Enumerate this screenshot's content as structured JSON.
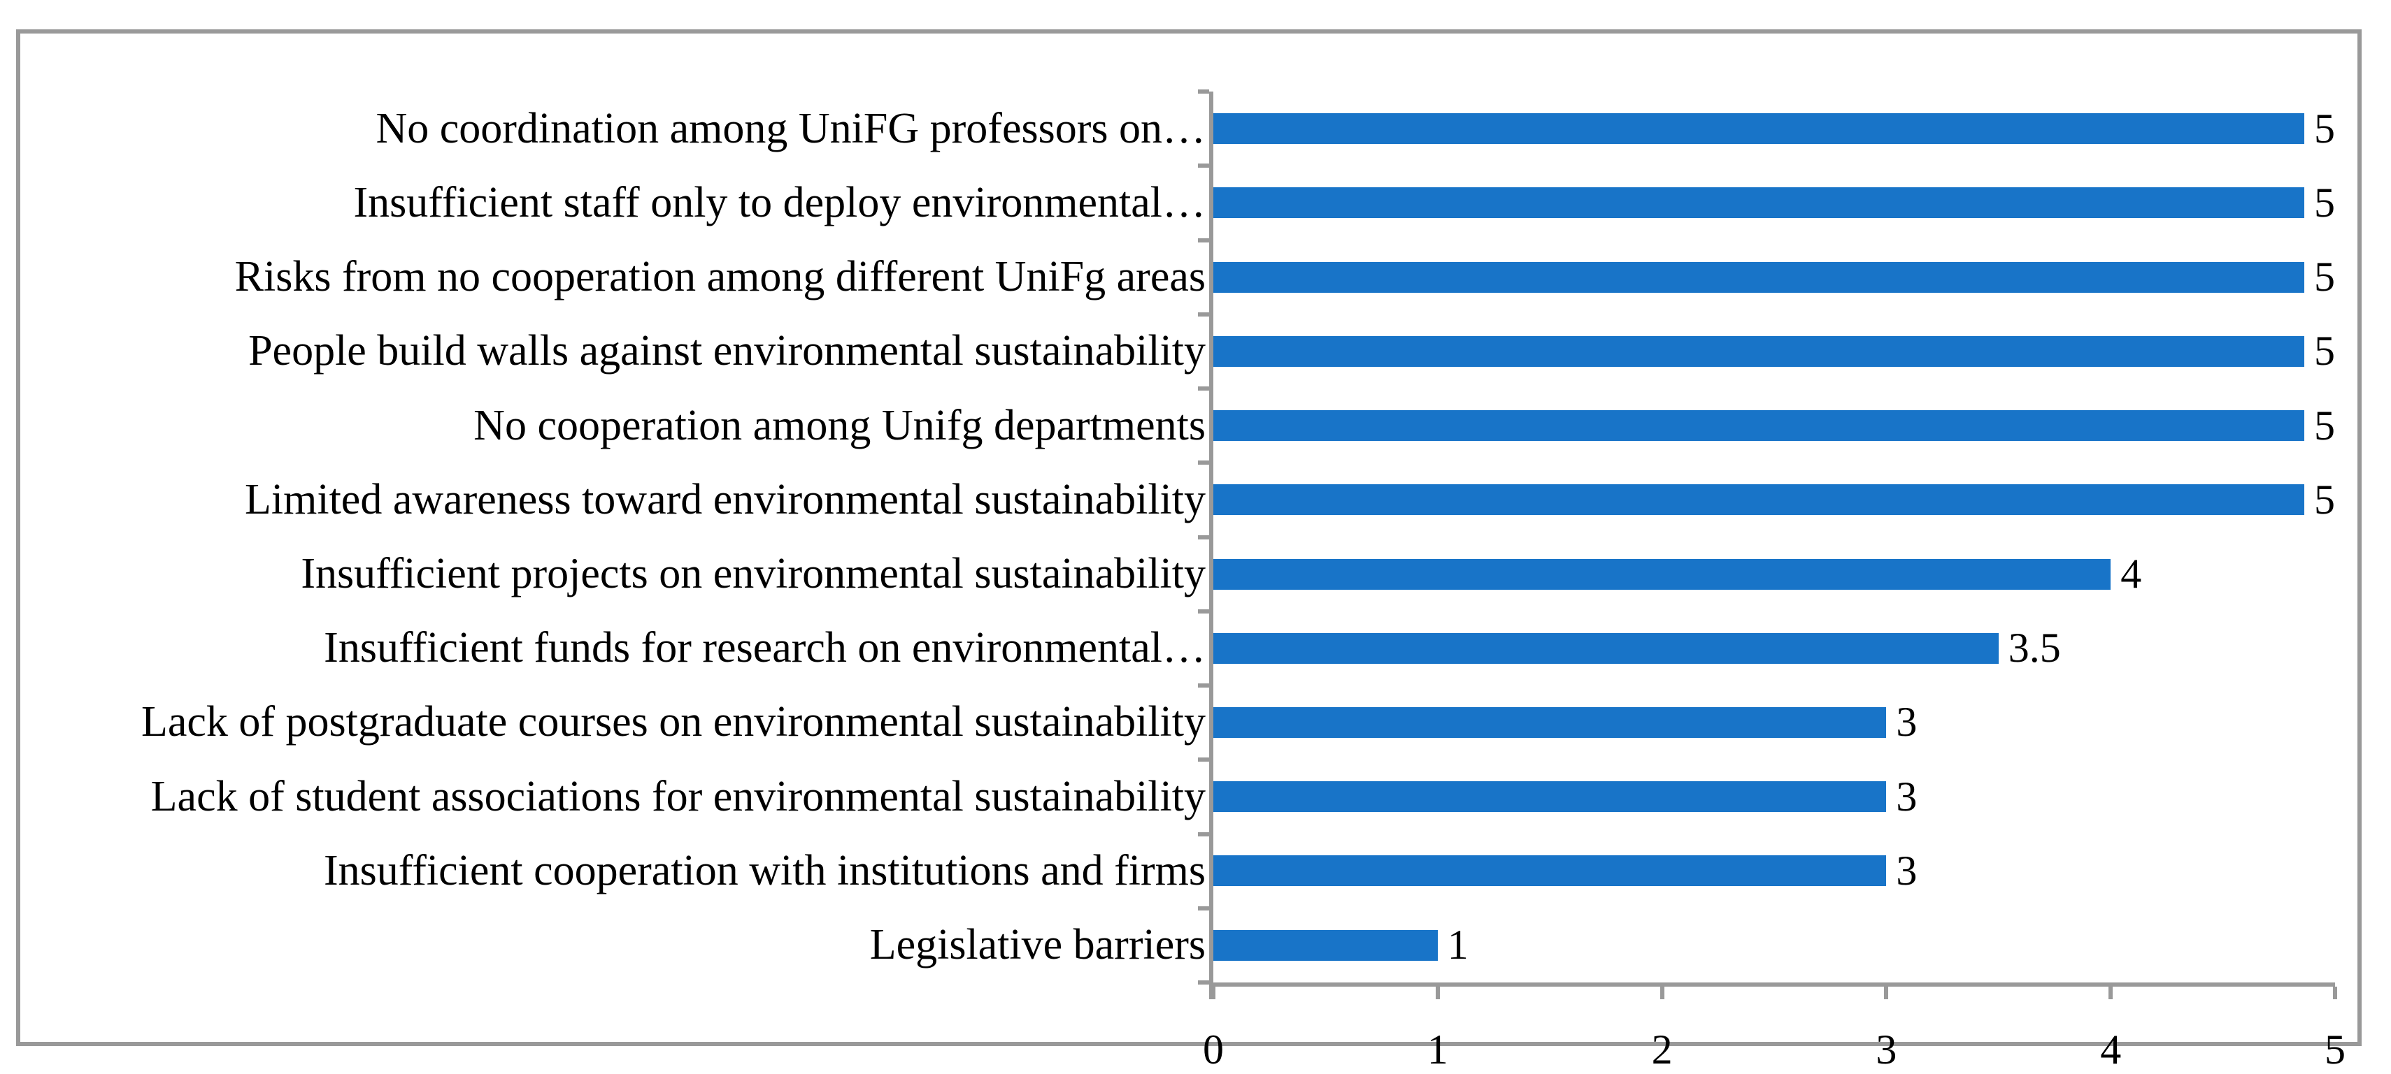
{
  "chart_data": {
    "type": "bar",
    "orientation": "horizontal",
    "title": "",
    "xlabel": "",
    "ylabel": "",
    "legend": "none",
    "grid": "off",
    "xlim": [
      0,
      5
    ],
    "x_tick_labels": [
      "0",
      "1",
      "2",
      "3",
      "4",
      "5"
    ],
    "categories": [
      "No coordination among UniFG professors on…",
      "Insufficient staff only to deploy environmental…",
      "Risks from no cooperation among different UniFg areas",
      "People build walls against environmental sustainability",
      "No cooperation among Unifg departments",
      "Limited awareness toward environmental sustainability",
      "Insufficient projects on environmental sustainability",
      "Insufficient funds for research on environmental…",
      "Lack of postgraduate courses on environmental sustainability",
      "Lack of student associations for environmental sustainability",
      "Insufficient cooperation with institutions and firms",
      "Legislative barriers"
    ],
    "values": [
      5,
      5,
      5,
      5,
      5,
      5,
      4,
      3.5,
      3,
      3,
      3,
      1
    ],
    "value_labels": [
      "5",
      "5",
      "5",
      "5",
      "5",
      "5",
      "4",
      "3.5",
      "3",
      "3",
      "3",
      "1"
    ],
    "bar_color": "#1874C8",
    "axis_color": "#999999",
    "text_color": "#000000"
  }
}
